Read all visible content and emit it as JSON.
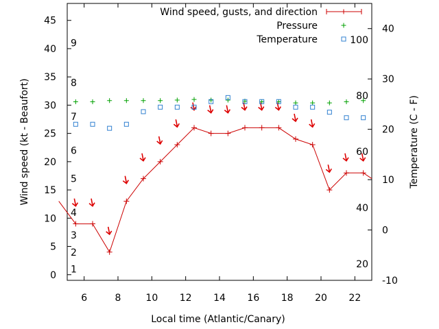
{
  "chart_data": {
    "type": "line",
    "xlabel": "Local time (Atlantic/Canary)",
    "ylabel": "Wind speed (kt - Beaufort)",
    "y2label": "Temperature (C - F)",
    "xlim": [
      5,
      23
    ],
    "ylim": [
      -1,
      48
    ],
    "y2lim": [
      -10,
      45
    ],
    "grid": false,
    "legend_position": "top-right",
    "x_ticks": [
      6,
      8,
      10,
      12,
      14,
      16,
      18,
      20,
      22
    ],
    "y_ticks": [
      0,
      5,
      10,
      15,
      20,
      25,
      30,
      35,
      40,
      45
    ],
    "y2_ticks": [
      -10,
      0,
      10,
      20,
      30,
      40
    ],
    "beaufort_labels": [
      {
        "label": "1",
        "kt": 1
      },
      {
        "label": "2",
        "kt": 4
      },
      {
        "label": "3",
        "kt": 7
      },
      {
        "label": "4",
        "kt": 11
      },
      {
        "label": "5",
        "kt": 17
      },
      {
        "label": "6",
        "kt": 22
      },
      {
        "label": "7",
        "kt": 28
      },
      {
        "label": "8",
        "kt": 34
      },
      {
        "label": "9",
        "kt": 41
      }
    ],
    "fahrenheit_labels": [
      {
        "label": "20",
        "c": -6.7
      },
      {
        "label": "40",
        "c": 4.4
      },
      {
        "label": "60",
        "c": 15.6
      },
      {
        "label": "80",
        "c": 26.7
      },
      {
        "label": "100",
        "c": 37.8
      }
    ],
    "colors": {
      "wind": "#cc0000",
      "direction": "#dd0000",
      "pressure": "#00a000",
      "temperature": "#3080d0"
    },
    "series": [
      {
        "name": "Wind speed, gusts, and direction",
        "axis": "left",
        "style": "line+plus",
        "x": [
          4.5,
          5.5,
          6.5,
          7.5,
          8.5,
          9.5,
          10.5,
          11.5,
          12.5,
          13.5,
          14.5,
          15.5,
          16.5,
          17.5,
          18.5,
          19.5,
          20.5,
          21.5,
          22.5,
          23.0
        ],
        "values": [
          13,
          9,
          9,
          4,
          13,
          17,
          20,
          23,
          26,
          25,
          25,
          26,
          26,
          26,
          24,
          23,
          15,
          18,
          18,
          17
        ]
      },
      {
        "name": "Pressure",
        "axis": "left",
        "style": "plus",
        "x": [
          5.5,
          6.5,
          7.5,
          8.5,
          9.5,
          10.5,
          11.5,
          12.5,
          13.5,
          14.5,
          15.5,
          16.5,
          17.5,
          18.5,
          19.5,
          20.5,
          21.5,
          22.5
        ],
        "values": [
          30.6,
          30.6,
          30.8,
          30.8,
          30.8,
          30.8,
          30.9,
          31.0,
          30.9,
          30.9,
          30.7,
          30.6,
          30.6,
          30.4,
          30.4,
          30.4,
          30.6,
          30.8
        ]
      },
      {
        "name": "Temperature",
        "axis": "right",
        "style": "square",
        "x": [
          5.5,
          6.5,
          7.5,
          8.5,
          9.5,
          10.5,
          11.5,
          12.5,
          13.5,
          14.5,
          15.5,
          16.5,
          17.5,
          18.5,
          19.5,
          20.5,
          21.5,
          22.5
        ],
        "values": [
          21,
          21,
          20.2,
          21,
          23.5,
          24.4,
          24.4,
          24.4,
          25.5,
          26.3,
          25.5,
          25.5,
          25.5,
          24.4,
          24.4,
          23.4,
          22.3,
          22.3
        ]
      }
    ],
    "direction_arrows": {
      "x": [
        5.5,
        6.5,
        7.5,
        8.5,
        9.5,
        10.5,
        11.5,
        12.5,
        13.5,
        14.5,
        15.5,
        16.5,
        17.5,
        18.5,
        19.5,
        20.5,
        21.5,
        22.5
      ],
      "kt": [
        12.5,
        12.5,
        7.5,
        16.5,
        20.5,
        23.5,
        26.5,
        29.5,
        29,
        29,
        29.5,
        29.5,
        29.5,
        27.5,
        26.5,
        18.5,
        20.5,
        20.5
      ]
    }
  }
}
